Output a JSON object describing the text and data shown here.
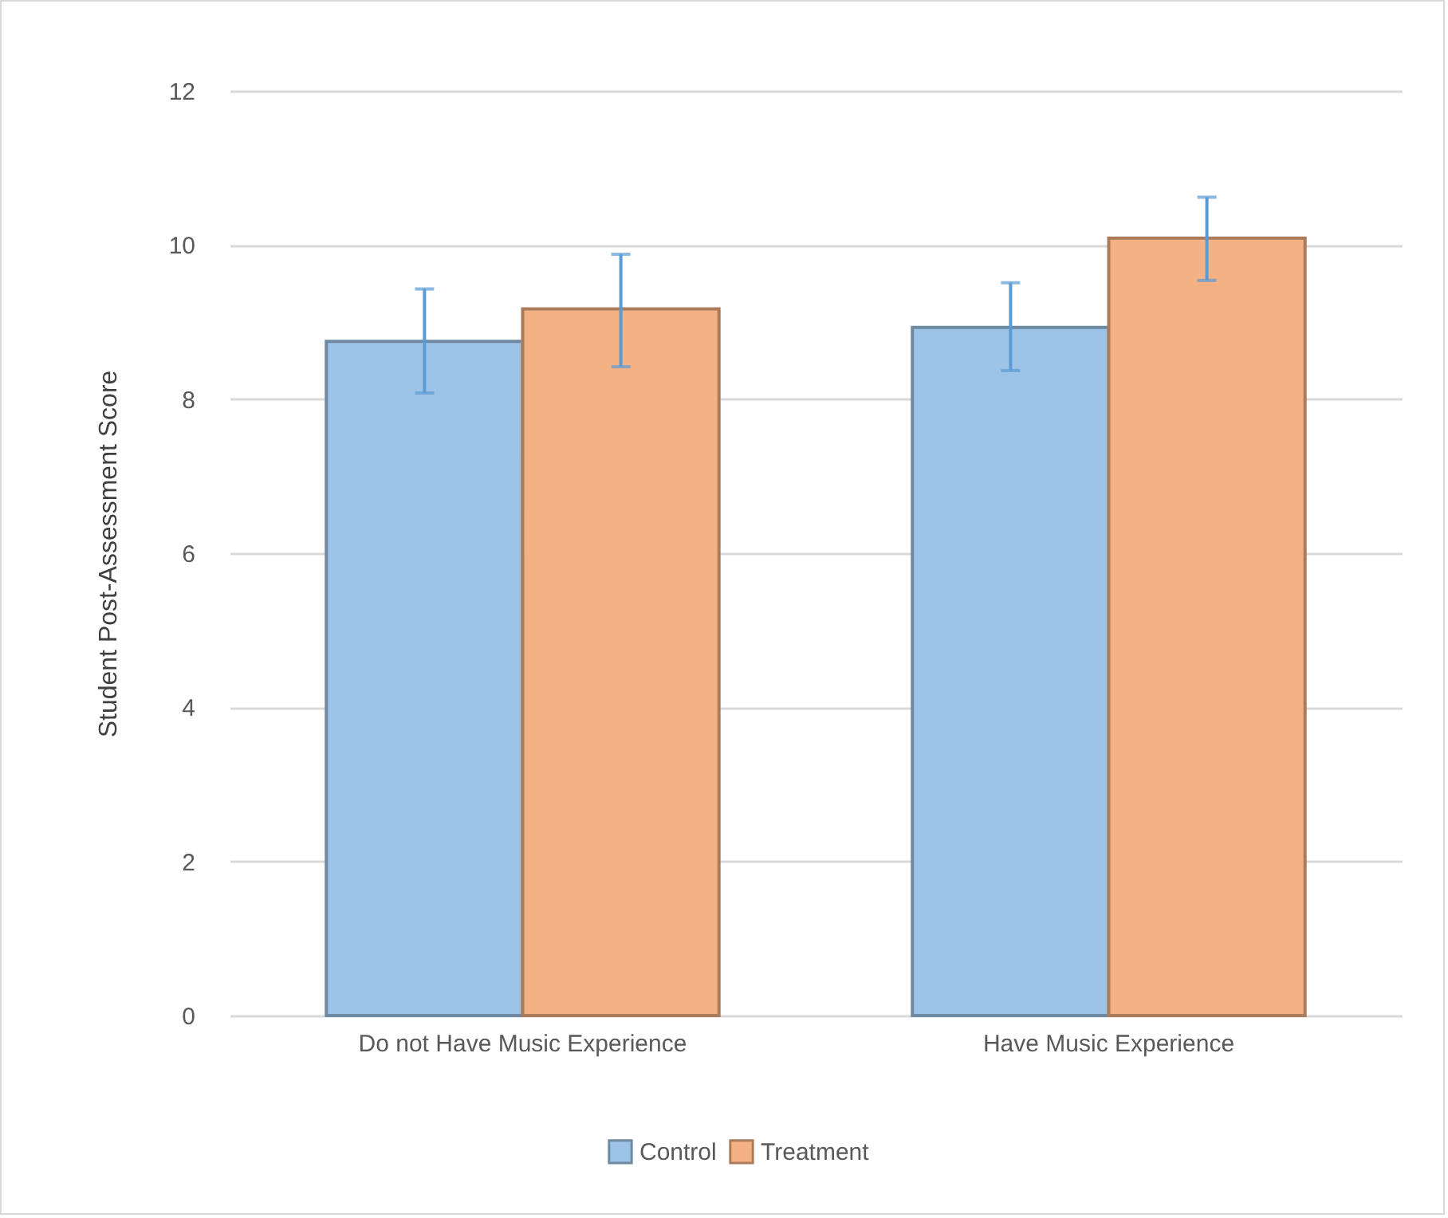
{
  "chart_data": {
    "type": "bar",
    "ylabel": "Student Post-Assessment Score",
    "categories": [
      "Do not Have Music Experience",
      "Have Music Experience"
    ],
    "series": [
      {
        "name": "Control",
        "color": "#9dc3e6",
        "values": [
          8.75,
          8.93
        ],
        "errors": [
          [
            8.08,
            9.43
          ],
          [
            8.37,
            9.51
          ]
        ]
      },
      {
        "name": "Treatment",
        "color": "#f4b183",
        "values": [
          9.17,
          10.09
        ],
        "errors": [
          [
            8.42,
            9.88
          ],
          [
            9.54,
            10.62
          ]
        ]
      }
    ],
    "ylim": [
      0,
      12
    ],
    "yticks": [
      0,
      2,
      4,
      6,
      8,
      10,
      12
    ],
    "grid": "y",
    "legend": "bottom"
  }
}
